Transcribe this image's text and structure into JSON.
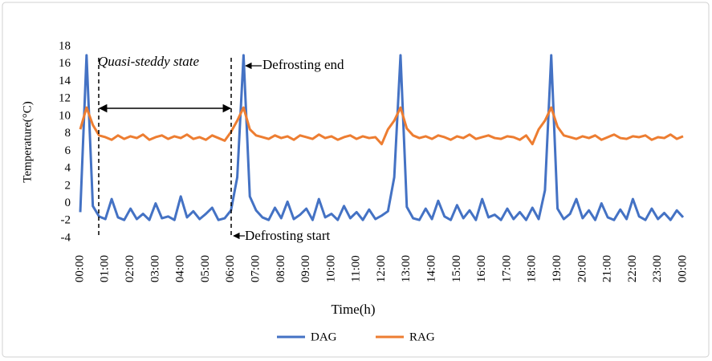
{
  "chart_data": {
    "type": "line",
    "x_label": "Time(h)",
    "y_label": "Temperature(°C)",
    "annotations": [
      "Quasi-steddy state",
      "Defrosting end",
      "Defrosting start"
    ],
    "categories": [
      "00:00",
      null,
      null,
      null,
      "01:00",
      null,
      null,
      null,
      "02:00",
      null,
      null,
      null,
      "03:00",
      null,
      null,
      null,
      "04:00",
      null,
      null,
      null,
      "05:00",
      null,
      null,
      null,
      "06:00",
      null,
      null,
      null,
      "07:00",
      null,
      null,
      null,
      "08:00",
      null,
      null,
      null,
      "09:00",
      null,
      null,
      null,
      "10:00",
      null,
      null,
      null,
      "11:00",
      null,
      null,
      null,
      "12:00",
      null,
      null,
      null,
      "13:00",
      null,
      null,
      null,
      "14:00",
      null,
      null,
      null,
      "15:00",
      null,
      null,
      null,
      "16:00",
      null,
      null,
      null,
      "17:00",
      null,
      null,
      null,
      "18:00",
      null,
      null,
      null,
      "19:00",
      null,
      null,
      null,
      "20:00",
      null,
      null,
      null,
      "21:00",
      null,
      null,
      null,
      "22:00",
      null,
      null,
      null,
      "23:00",
      null,
      null,
      null,
      "00:00"
    ],
    "series": [
      {
        "name": "DAG",
        "color": "#4472c4",
        "values": [
          -1,
          17,
          -0.3,
          -1.5,
          -1.8,
          0.5,
          -1.6,
          -1.9,
          -0.6,
          -1.8,
          -1.2,
          -1.9,
          0,
          -1.7,
          -1.5,
          -1.9,
          0.8,
          -1.6,
          -0.9,
          -1.8,
          -1.2,
          -0.5,
          -1.9,
          -1.7,
          -0.8,
          3,
          17,
          0.8,
          -0.8,
          -1.6,
          -1.9,
          -0.5,
          -1.7,
          0.2,
          -1.8,
          -1.3,
          -0.6,
          -1.9,
          0.5,
          -1.6,
          -1.2,
          -1.9,
          -0.3,
          -1.7,
          -1,
          -1.9,
          -0.7,
          -1.8,
          -1.4,
          -0.9,
          3,
          17,
          -0.4,
          -1.7,
          -1.9,
          -0.6,
          -1.8,
          0.3,
          -1.5,
          -1.9,
          -0.2,
          -1.7,
          -0.8,
          -1.9,
          0.5,
          -1.6,
          -1.3,
          -1.9,
          -0.6,
          -1.8,
          -1,
          -1.9,
          -0.5,
          -1.8,
          1.5,
          17,
          -0.6,
          -1.8,
          -1.2,
          0.5,
          -1.7,
          -0.8,
          -1.9,
          0,
          -1.6,
          -1.9,
          -0.7,
          -1.8,
          0.5,
          -1.5,
          -1.9,
          -0.6,
          -1.8,
          -1.1,
          -1.9,
          -0.8,
          -1.6
        ]
      },
      {
        "name": "RAG",
        "color": "#ed7d31",
        "values": [
          8.5,
          11,
          9,
          7.8,
          7.6,
          7.3,
          7.8,
          7.4,
          7.7,
          7.5,
          7.9,
          7.3,
          7.6,
          7.8,
          7.4,
          7.7,
          7.5,
          7.9,
          7.4,
          7.6,
          7.3,
          7.8,
          7.5,
          7.2,
          8.2,
          9.5,
          11,
          8.5,
          7.8,
          7.6,
          7.4,
          7.8,
          7.5,
          7.7,
          7.3,
          7.8,
          7.6,
          7.4,
          7.9,
          7.5,
          7.7,
          7.3,
          7.6,
          7.8,
          7.4,
          7.7,
          7.5,
          7.6,
          6.8,
          8.5,
          9.5,
          11,
          8.6,
          7.8,
          7.5,
          7.7,
          7.4,
          7.8,
          7.6,
          7.3,
          7.7,
          7.5,
          7.9,
          7.4,
          7.6,
          7.8,
          7.5,
          7.4,
          7.7,
          7.6,
          7.3,
          7.8,
          6.8,
          8.5,
          9.5,
          11,
          8.8,
          7.8,
          7.6,
          7.4,
          7.7,
          7.5,
          7.8,
          7.3,
          7.6,
          7.9,
          7.5,
          7.4,
          7.7,
          7.6,
          7.8,
          7.3,
          7.6,
          7.5,
          7.9,
          7.4,
          7.7
        ]
      }
    ],
    "ylim": [
      -4,
      18
    ],
    "yticks": [
      -4,
      -2,
      0,
      2,
      4,
      6,
      8,
      10,
      12,
      14,
      16,
      18
    ],
    "grid": false,
    "legend": "bottom"
  }
}
